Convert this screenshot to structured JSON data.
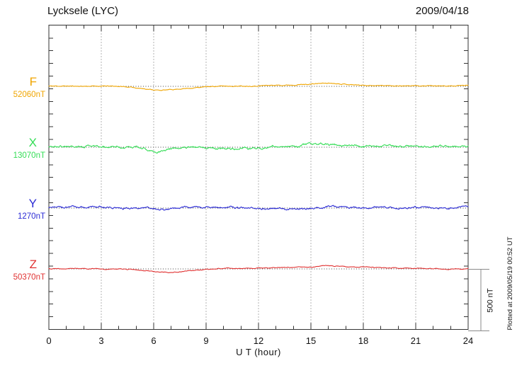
{
  "title": "Lycksele (LYC)",
  "date": "2009/04/18",
  "x_axis": {
    "label": "U T (hour)",
    "ticks": [
      0,
      3,
      6,
      9,
      12,
      15,
      18,
      21,
      24
    ],
    "minor_step_hours": 1,
    "range": [
      0,
      24
    ]
  },
  "scale_bar": {
    "label": "500 nT",
    "value_nT": 500
  },
  "watermark": "Plotted at 2009/05/19 00:52 UT",
  "colors": {
    "frame": "#333333",
    "grid_dots": "#666666",
    "baseline_dots": "#444444",
    "scale_bar": "#8a8a8a",
    "text": "#111111",
    "background": "#ffffff"
  },
  "chart_data": {
    "type": "line",
    "title": "Lycksele (LYC) magnetogram 2009/04/18",
    "xlabel": "U T (hour)",
    "x_range_hours": [
      0,
      24
    ],
    "x_major_ticks": [
      0,
      3,
      6,
      9,
      12,
      15,
      18,
      21,
      24
    ],
    "grid": "dotted vertical at 3-hour marks, dotted horizontal baseline per channel",
    "y_scale": {
      "scale_bar_nT": 500,
      "channel_spacing_nT": 500
    },
    "series": [
      {
        "id": "F",
        "label": "F",
        "baseline_label": "52060nT",
        "baseline_nT": 52060,
        "color": "#f0a500",
        "noise_nT": 3,
        "keypoints_hour_offset_nT": [
          [
            0,
            2
          ],
          [
            1,
            2
          ],
          [
            2,
            1
          ],
          [
            3,
            2
          ],
          [
            4,
            0
          ],
          [
            4.5,
            -5
          ],
          [
            5,
            -12
          ],
          [
            5.5,
            -20
          ],
          [
            6,
            -28
          ],
          [
            6.3,
            -32
          ],
          [
            6.7,
            -30
          ],
          [
            7.2,
            -24
          ],
          [
            7.8,
            -18
          ],
          [
            8.3,
            -12
          ],
          [
            9,
            -4
          ],
          [
            9.5,
            0
          ],
          [
            10,
            2
          ],
          [
            11,
            2
          ],
          [
            12,
            4
          ],
          [
            12.5,
            8
          ],
          [
            13,
            9
          ],
          [
            13.5,
            10
          ],
          [
            14,
            12
          ],
          [
            14.5,
            15
          ],
          [
            15,
            18
          ],
          [
            15.5,
            24
          ],
          [
            16,
            26
          ],
          [
            16.3,
            25
          ],
          [
            16.8,
            20
          ],
          [
            17.3,
            14
          ],
          [
            18,
            9
          ],
          [
            19,
            6
          ],
          [
            20,
            5
          ],
          [
            21,
            4
          ],
          [
            22,
            3
          ],
          [
            23,
            3
          ],
          [
            23.5,
            5
          ],
          [
            24,
            9
          ]
        ]
      },
      {
        "id": "X",
        "label": "X",
        "baseline_label": "13070nT",
        "baseline_nT": 13070,
        "color": "#33dd55",
        "noise_nT": 8,
        "keypoints_hour_offset_nT": [
          [
            0,
            3
          ],
          [
            0.5,
            6
          ],
          [
            1,
            5
          ],
          [
            1.5,
            7
          ],
          [
            2,
            5
          ],
          [
            2.3,
            9
          ],
          [
            2.6,
            4
          ],
          [
            3,
            6
          ],
          [
            3.5,
            4
          ],
          [
            4,
            2
          ],
          [
            4.3,
            -6
          ],
          [
            4.6,
            0
          ],
          [
            5,
            -2
          ],
          [
            5.4,
            -8
          ],
          [
            5.7,
            -25
          ],
          [
            6,
            -38
          ],
          [
            6.2,
            -40
          ],
          [
            6.5,
            -30
          ],
          [
            6.8,
            -12
          ],
          [
            7,
            -6
          ],
          [
            7.3,
            -2
          ],
          [
            7.6,
            2
          ],
          [
            8,
            0
          ],
          [
            8.5,
            2
          ],
          [
            9,
            -2
          ],
          [
            9.5,
            -8
          ],
          [
            10,
            -10
          ],
          [
            10.5,
            -12
          ],
          [
            11,
            -10
          ],
          [
            11.5,
            -12
          ],
          [
            12,
            -8
          ],
          [
            12.3,
            -2
          ],
          [
            12.6,
            4
          ],
          [
            13,
            2
          ],
          [
            13.3,
            14
          ],
          [
            13.6,
            6
          ],
          [
            14,
            18
          ],
          [
            14.3,
            10
          ],
          [
            14.6,
            16
          ],
          [
            15,
            28
          ],
          [
            15.2,
            18
          ],
          [
            15.5,
            24
          ],
          [
            15.8,
            30
          ],
          [
            16,
            18
          ],
          [
            16.5,
            14
          ],
          [
            17,
            10
          ],
          [
            17.5,
            12
          ],
          [
            18,
            10
          ],
          [
            18.5,
            8
          ],
          [
            19,
            10
          ],
          [
            19.5,
            14
          ],
          [
            20,
            8
          ],
          [
            20.5,
            10
          ],
          [
            21,
            8
          ],
          [
            21.5,
            6
          ],
          [
            22,
            10
          ],
          [
            22.5,
            8
          ],
          [
            23,
            6
          ],
          [
            23.5,
            8
          ],
          [
            24,
            6
          ]
        ]
      },
      {
        "id": "Y",
        "label": "Y",
        "baseline_label": "1270nT",
        "baseline_nT": 1270,
        "color": "#2b2bd5",
        "noise_nT": 7,
        "keypoints_hour_offset_nT": [
          [
            0,
            4
          ],
          [
            0.5,
            6
          ],
          [
            1,
            8
          ],
          [
            1.5,
            6
          ],
          [
            2,
            10
          ],
          [
            2.3,
            14
          ],
          [
            2.6,
            8
          ],
          [
            3,
            6
          ],
          [
            3.3,
            10
          ],
          [
            3.6,
            4
          ],
          [
            4,
            2
          ],
          [
            4.3,
            -4
          ],
          [
            4.6,
            -6
          ],
          [
            5,
            0
          ],
          [
            5.3,
            4
          ],
          [
            5.6,
            -2
          ],
          [
            6,
            -6
          ],
          [
            6.3,
            -12
          ],
          [
            6.6,
            -14
          ],
          [
            7,
            -8
          ],
          [
            7.5,
            0
          ],
          [
            8,
            4
          ],
          [
            8.5,
            6
          ],
          [
            9,
            4
          ],
          [
            9.5,
            6
          ],
          [
            10,
            4
          ],
          [
            10.5,
            6
          ],
          [
            11,
            4
          ],
          [
            11.5,
            2
          ],
          [
            12,
            0
          ],
          [
            12.5,
            -4
          ],
          [
            13,
            -6
          ],
          [
            13.5,
            -8
          ],
          [
            14,
            -6
          ],
          [
            14.5,
            -8
          ],
          [
            15,
            -4
          ],
          [
            15.3,
            2
          ],
          [
            15.6,
            8
          ],
          [
            16,
            12
          ],
          [
            16.4,
            14
          ],
          [
            16.8,
            10
          ],
          [
            17.2,
            6
          ],
          [
            17.6,
            4
          ],
          [
            18,
            4
          ],
          [
            19,
            2
          ],
          [
            20,
            4
          ],
          [
            21,
            2
          ],
          [
            22,
            4
          ],
          [
            23,
            2
          ],
          [
            23.5,
            6
          ],
          [
            24,
            4
          ]
        ]
      },
      {
        "id": "Z",
        "label": "Z",
        "baseline_label": "50370nT",
        "baseline_nT": 50370,
        "color": "#e03232",
        "noise_nT": 3,
        "keypoints_hour_offset_nT": [
          [
            0,
            0
          ],
          [
            1,
            1
          ],
          [
            2,
            1
          ],
          [
            3,
            0
          ],
          [
            4,
            0
          ],
          [
            4.5,
            -3
          ],
          [
            5,
            -8
          ],
          [
            5.5,
            -14
          ],
          [
            6,
            -20
          ],
          [
            6.5,
            -26
          ],
          [
            7,
            -28
          ],
          [
            7.5,
            -24
          ],
          [
            8,
            -18
          ],
          [
            8.5,
            -10
          ],
          [
            9,
            -4
          ],
          [
            9.5,
            2
          ],
          [
            10,
            5
          ],
          [
            10.5,
            6
          ],
          [
            11,
            7
          ],
          [
            11.5,
            7
          ],
          [
            12,
            8
          ],
          [
            12.5,
            9
          ],
          [
            13,
            10
          ],
          [
            13.5,
            12
          ],
          [
            14,
            12
          ],
          [
            14.5,
            13
          ],
          [
            15,
            14
          ],
          [
            15.3,
            20
          ],
          [
            15.6,
            28
          ],
          [
            16,
            26
          ],
          [
            16.4,
            22
          ],
          [
            16.8,
            20
          ],
          [
            17.2,
            18
          ],
          [
            18,
            16
          ],
          [
            18.5,
            12
          ],
          [
            19,
            10
          ],
          [
            19.5,
            8
          ],
          [
            20,
            7
          ],
          [
            20.5,
            6
          ],
          [
            21,
            6
          ],
          [
            21.5,
            5
          ],
          [
            22,
            4
          ],
          [
            22.3,
            0
          ],
          [
            22.6,
            -3
          ],
          [
            23,
            -2
          ],
          [
            23.4,
            2
          ],
          [
            23.7,
            0
          ],
          [
            24,
            5
          ]
        ]
      }
    ]
  }
}
